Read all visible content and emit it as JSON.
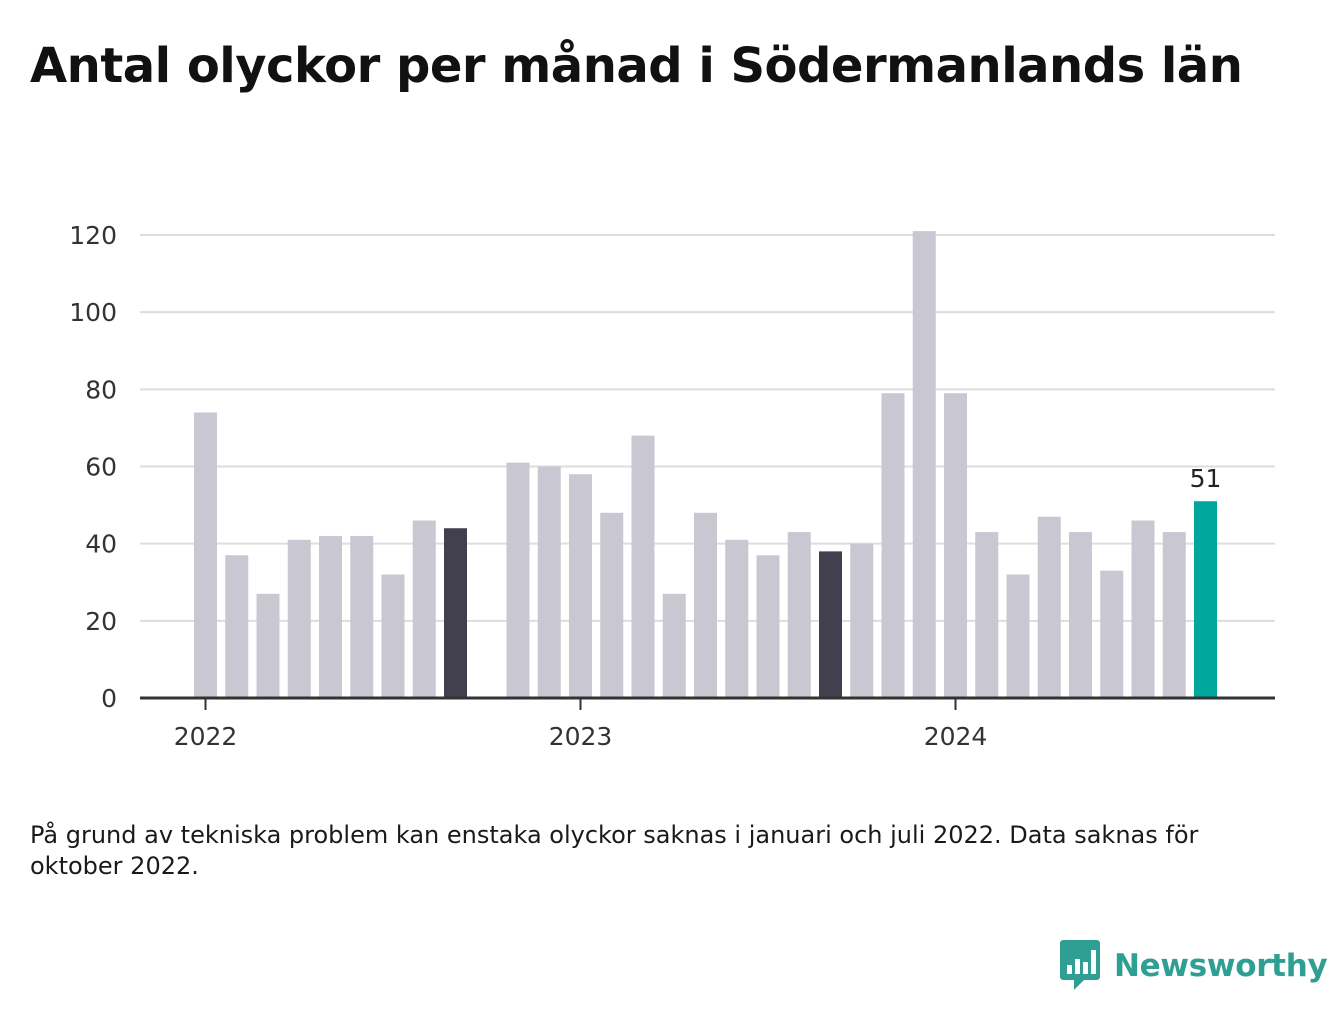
{
  "title": "Antal olyckor per månad i Södermanlands län",
  "footnote": "På grund av tekniska problem kan enstaka olyckor saknas i januari och juli 2022. Data saknas för oktober 2022.",
  "brand": {
    "name": "Newsworthy",
    "icon": "bar-chart-speech-bubble-icon"
  },
  "colors": {
    "bar_default": "#c8c7d2",
    "bar_september": "#42404e",
    "bar_latest": "#00a79c",
    "grid": "#dddddd",
    "axis": "#333333",
    "brand": "#2f9e93"
  },
  "chart_data": {
    "type": "bar",
    "title": "Antal olyckor per månad i Södermanlands län",
    "xlabel": "",
    "ylabel": "",
    "ylim": [
      0,
      120
    ],
    "yticks": [
      "0",
      "20",
      "40",
      "60",
      "80",
      "100",
      "120"
    ],
    "xtick_labels": [
      {
        "label": "2022",
        "at": "2022-01"
      },
      {
        "label": "2023",
        "at": "2023-01"
      },
      {
        "label": "2024",
        "at": "2024-01"
      }
    ],
    "grid": "horizontal",
    "highlight": {
      "dark": [
        "2022-09",
        "2023-09"
      ],
      "accent": [
        "2024-09"
      ]
    },
    "data_labels": [
      {
        "month": "2024-09",
        "text": "51"
      }
    ],
    "categories": [
      "2022-01",
      "2022-02",
      "2022-03",
      "2022-04",
      "2022-05",
      "2022-06",
      "2022-07",
      "2022-08",
      "2022-09",
      "2022-10",
      "2022-11",
      "2022-12",
      "2023-01",
      "2023-02",
      "2023-03",
      "2023-04",
      "2023-05",
      "2023-06",
      "2023-07",
      "2023-08",
      "2023-09",
      "2023-10",
      "2023-11",
      "2023-12",
      "2024-01",
      "2024-02",
      "2024-03",
      "2024-04",
      "2024-05",
      "2024-06",
      "2024-07",
      "2024-08",
      "2024-09"
    ],
    "values": [
      74,
      37,
      27,
      41,
      42,
      42,
      32,
      46,
      44,
      null,
      61,
      60,
      58,
      48,
      68,
      27,
      48,
      41,
      37,
      43,
      38,
      40,
      79,
      121,
      79,
      43,
      32,
      47,
      43,
      33,
      46,
      43,
      51
    ]
  }
}
